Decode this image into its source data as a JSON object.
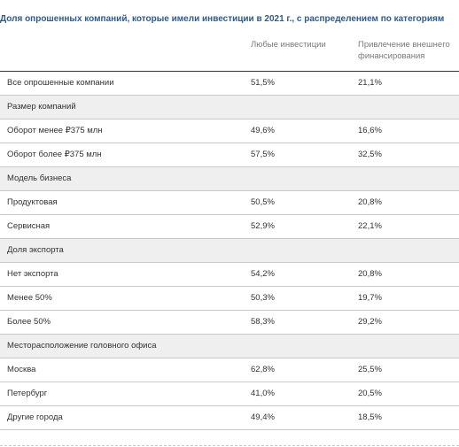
{
  "title": "Доля опрошенных компаний, которые имели инвестиции в 2021 г., с распределением по категориям",
  "columns": {
    "col1": "Любые инвестиции",
    "col2": "Привлечение внешнего финансирования"
  },
  "rows": [
    {
      "label": "Все опрошенные компании",
      "v1": "51,5%",
      "v2": "21,1%"
    },
    {
      "label": "Размер компаний",
      "v1": "",
      "v2": ""
    },
    {
      "label": "Оборот менее ₽375 млн",
      "v1": "49,6%",
      "v2": "16,6%"
    },
    {
      "label": "Оборот более ₽375 млн",
      "v1": "57,5%",
      "v2": "32,5%"
    },
    {
      "label": "Модель бизнеса",
      "v1": "",
      "v2": ""
    },
    {
      "label": "Продуктовая",
      "v1": "50,5%",
      "v2": "20,8%"
    },
    {
      "label": "Сервисная",
      "v1": "52,9%",
      "v2": "22,1%"
    },
    {
      "label": "Доля экспорта",
      "v1": "",
      "v2": ""
    },
    {
      "label": "Нет экспорта",
      "v1": "54,2%",
      "v2": "20,8%"
    },
    {
      "label": "Менее 50%",
      "v1": "50,3%",
      "v2": "19,7%"
    },
    {
      "label": "Более 50%",
      "v1": "58,3%",
      "v2": "29,2%"
    },
    {
      "label": "Месторасположение головного офиса",
      "v1": "",
      "v2": ""
    },
    {
      "label": "Москва",
      "v1": "62,8%",
      "v2": "25,5%"
    },
    {
      "label": "Петербург",
      "v1": "41,0%",
      "v2": "20,5%"
    },
    {
      "label": "Другие города",
      "v1": "49,4%",
      "v2": "18,5%"
    }
  ],
  "colors": {
    "title": "#2d5a8c",
    "section_bg": "#efefef",
    "text": "#333333",
    "header_text": "#7a7a7a",
    "row_divider": "#c8c8c8"
  }
}
